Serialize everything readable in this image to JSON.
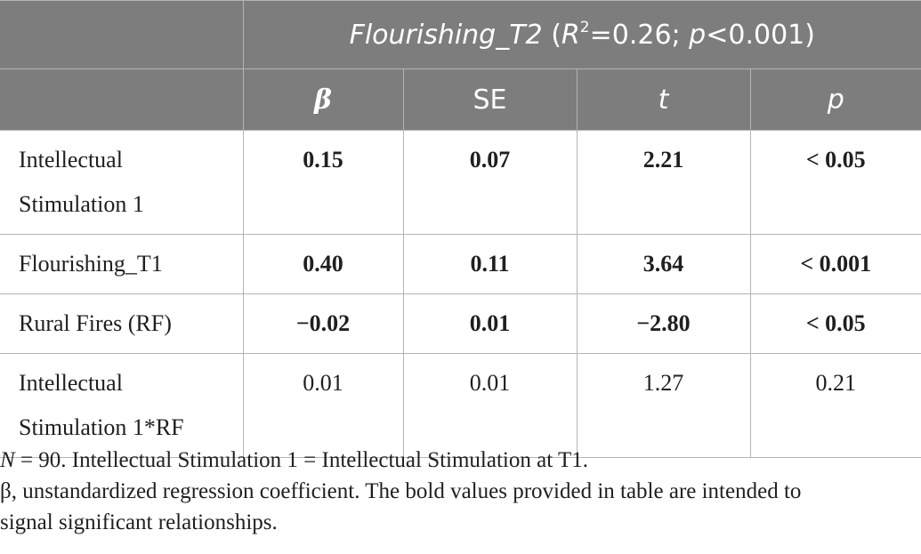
{
  "table": {
    "model_header": {
      "outcome": "Flourishing_T2",
      "paren_open": "(",
      "r_label": "R",
      "r_sup": "2",
      "r_value": "=0.26; ",
      "p_label": "p",
      "p_value": "<0.001)"
    },
    "columns": [
      "β",
      "SE",
      "t",
      "p"
    ],
    "rows": [
      {
        "label_line1": "Intellectual",
        "label_line2": "Stimulation 1",
        "beta": "0.15",
        "se": "0.07",
        "t": "2.21",
        "p": "< 0.05",
        "bold": true
      },
      {
        "label_line1": "Flourishing_T1",
        "label_line2": "",
        "beta": "0.40",
        "se": "0.11",
        "t": "3.64",
        "p": "< 0.001",
        "bold": true
      },
      {
        "label_line1": "Rural Fires (RF)",
        "label_line2": "",
        "beta": "−0.02",
        "se": "0.01",
        "t": "−2.80",
        "p": "< 0.05",
        "bold": true
      },
      {
        "label_line1": "Intellectual",
        "label_line2": "Stimulation 1*RF",
        "beta": "0.01",
        "se": "0.01",
        "t": "1.27",
        "p": "0.21",
        "bold": false
      }
    ]
  },
  "notes": {
    "n_symbol": "N",
    "line1_rest": " = 90. Intellectual Stimulation 1 = Intellectual Stimulation at T1.",
    "line2": "β, unstandardized regression coefficient. The bold values provided in table are intended to",
    "line3": "signal significant relationships."
  }
}
